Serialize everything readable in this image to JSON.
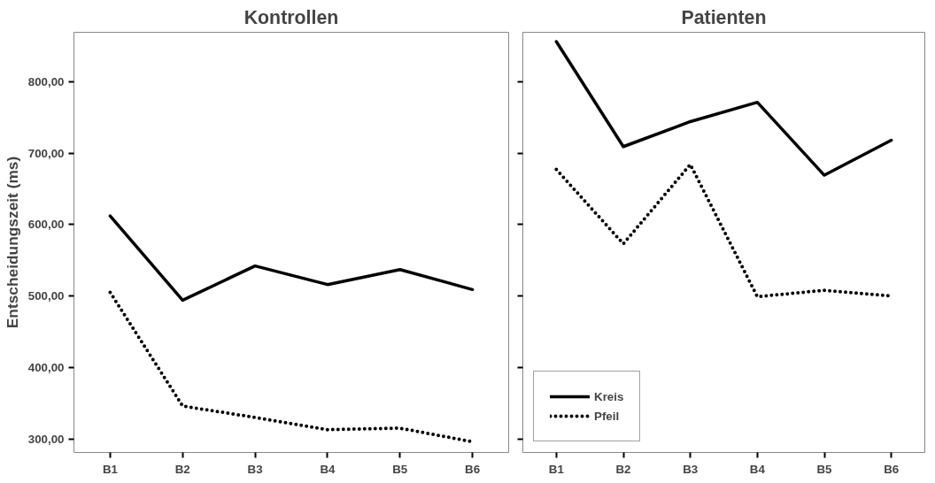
{
  "chart_data": [
    {
      "type": "line",
      "title": "Kontrollen",
      "ylabel": "Entscheidungszeit (ms)",
      "categories": [
        "B1",
        "B2",
        "B3",
        "B4",
        "B5",
        "B6"
      ],
      "series": [
        {
          "color": "#000000",
          "line_style": "solid",
          "values": [
            612,
            494,
            542,
            516,
            537,
            509
          ]
        },
        {
          "color": "#000000",
          "line_style": "dotted",
          "values": [
            505,
            346,
            330,
            313,
            315,
            296
          ]
        }
      ],
      "ylim": [
        281,
        869
      ],
      "yticks": [
        {
          "value": 300,
          "label": "300,00"
        },
        {
          "value": 400,
          "label": "400,00"
        },
        {
          "value": 500,
          "label": "500,00"
        },
        {
          "value": 600,
          "label": "600,00"
        },
        {
          "value": 700,
          "label": "700,00"
        },
        {
          "value": 800,
          "label": "800,00"
        }
      ],
      "grid": false,
      "legend": false,
      "marker": "none"
    },
    {
      "type": "line",
      "title": "Patienten",
      "categories": [
        "B1",
        "B2",
        "B3",
        "B4",
        "B5",
        "B6"
      ],
      "series": [
        {
          "name": "Kreis",
          "color": "#000000",
          "line_style": "solid",
          "values": [
            856,
            709,
            744,
            771,
            669,
            718
          ]
        },
        {
          "name": "Pfeil",
          "color": "#000000",
          "line_style": "dotted",
          "values": [
            677,
            573,
            684,
            499,
            508,
            500
          ]
        }
      ],
      "ylim": [
        281,
        869
      ],
      "yticks": [
        300,
        400,
        500,
        600,
        700,
        800
      ],
      "tick_labels": "x",
      "grid": false,
      "legend": "bottom left",
      "marker": "none"
    }
  ]
}
